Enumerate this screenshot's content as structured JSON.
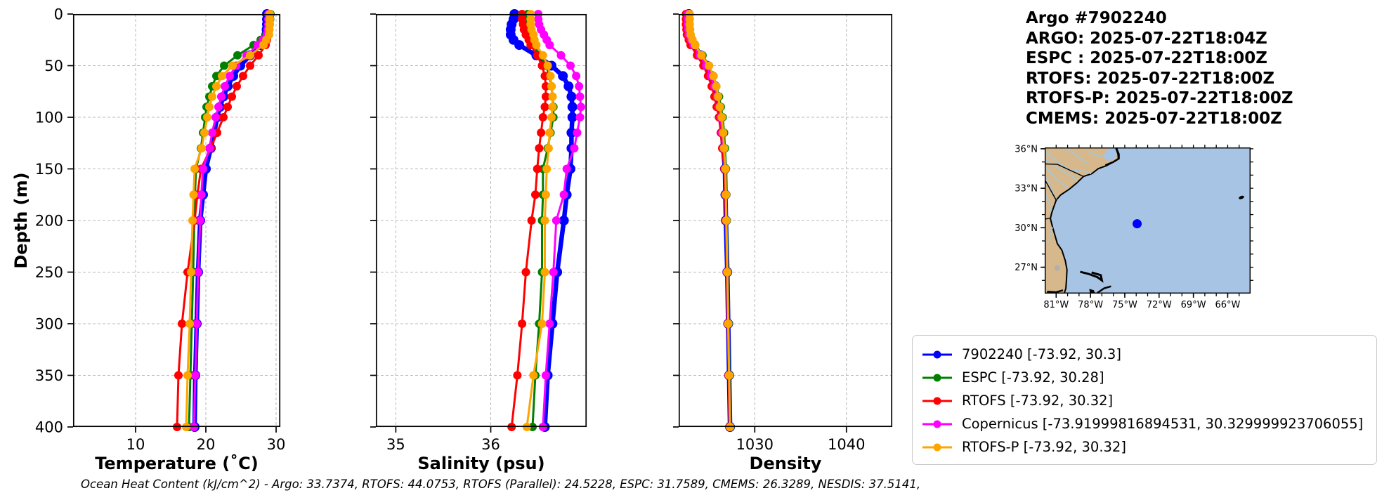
{
  "title_block": {
    "lines": [
      "Argo #7902240",
      "ARGO: 2025-07-22T18:04Z",
      "ESPC : 2025-07-22T18:00Z",
      "RTOFS: 2025-07-22T18:00Z",
      "RTOFS-P: 2025-07-22T18:00Z",
      "CMEMS: 2025-07-22T18:00Z"
    ]
  },
  "footer": "Ocean Heat Content (kJ/cm^2) - Argo: 33.7374,  RTOFS: 44.0753,  RTOFS (Parallel): 24.5228,  ESPC: 31.7589,  CMEMS: 26.3289,  NESDIS: 37.5141,",
  "axes": {
    "ylabel": "Depth (m)",
    "depth_ticks": [
      0,
      50,
      100,
      150,
      200,
      250,
      300,
      350,
      400
    ],
    "depth_range": [
      0,
      400
    ],
    "grid_color": "#b8b8b8",
    "spine_color": "#000000"
  },
  "colors": {
    "argo": "#0000ff",
    "espc": "#008000",
    "rtofs": "#ff0000",
    "copernicus": "#ff00ff",
    "rtofs_p": "#ffa500",
    "map_ocean": "#a8c4e4",
    "map_land": "#d6b88c",
    "map_river": "#9ecae1",
    "map_coast": "#000000",
    "map_lake": "#b0b0b0",
    "map_marker": "#0000ff"
  },
  "legend": {
    "entries": [
      {
        "label": "7902240 [-73.92, 30.3]",
        "color": "#0000ff"
      },
      {
        "label": "ESPC [-73.92, 30.28]",
        "color": "#008000"
      },
      {
        "label": "RTOFS [-73.92, 30.32]",
        "color": "#ff0000"
      },
      {
        "label": "Copernicus [-73.91999816894531, 30.329999923706055]",
        "color": "#ff00ff"
      },
      {
        "label": "RTOFS-P [-73.92, 30.32]",
        "color": "#ffa500"
      }
    ]
  },
  "map": {
    "lon_tick_labels": [
      "81°W",
      "78°W",
      "75°W",
      "72°W",
      "69°W",
      "66°W"
    ],
    "lon_ticks": [
      -81,
      -78,
      -75,
      -72,
      -69,
      -66
    ],
    "lat_tick_labels": [
      "36°N",
      "33°N",
      "30°N",
      "27°N"
    ],
    "lat_ticks": [
      36,
      33,
      30,
      27
    ],
    "lon_range": [
      -82,
      -64
    ],
    "lat_range": [
      25.0,
      36.1
    ],
    "marker": {
      "lon": -73.92,
      "lat": 30.3
    }
  },
  "profile_depths": [
    0,
    5,
    10,
    15,
    20,
    25,
    30,
    40,
    50,
    60,
    70,
    80,
    90,
    100,
    115,
    130,
    150,
    175,
    200,
    250,
    300,
    350,
    400
  ],
  "chart_data": [
    {
      "type": "line",
      "id": "temp",
      "xlabel": "Temperature (˚C)",
      "xlim": [
        1.1,
        30.6
      ],
      "xticks": [
        10,
        20,
        30
      ],
      "xtick_labels": [
        "10",
        "20",
        "30"
      ],
      "show_depth_labels": true,
      "series": [
        {
          "name": "7902240",
          "color": "#0000ff",
          "lw": 6.5,
          "r": 7,
          "values": [
            28.7,
            28.7,
            28.7,
            28.65,
            28.6,
            28.3,
            27.8,
            26.3,
            24.9,
            23.9,
            23.1,
            22.5,
            22.0,
            21.6,
            21.2,
            20.7,
            20.0,
            19.6,
            19.2,
            18.9,
            18.7,
            18.5,
            18.4
          ]
        },
        {
          "name": "ESPC",
          "color": "#008000",
          "lw": 3,
          "r": 6,
          "values": [
            29.2,
            29.15,
            29.1,
            28.9,
            28.6,
            27.8,
            26.8,
            24.5,
            22.6,
            21.5,
            20.9,
            20.5,
            20.1,
            19.9,
            19.6,
            19.3,
            18.6,
            18.45,
            18.35,
            18.2,
            18.0,
            17.8,
            17.6
          ]
        },
        {
          "name": "RTOFS",
          "color": "#ff0000",
          "lw": 3,
          "r": 6,
          "values": [
            29.0,
            29.0,
            29.0,
            28.95,
            28.9,
            28.7,
            28.5,
            27.5,
            26.3,
            25.3,
            24.4,
            23.7,
            23.1,
            22.5,
            21.6,
            20.7,
            19.3,
            18.8,
            18.4,
            17.4,
            16.6,
            16.1,
            15.9
          ]
        },
        {
          "name": "Copernicus",
          "color": "#ff00ff",
          "lw": 3,
          "r": 6,
          "values": [
            28.9,
            28.9,
            28.9,
            28.8,
            28.7,
            28.1,
            27.4,
            25.8,
            24.3,
            23.4,
            22.7,
            22.2,
            21.8,
            21.4,
            20.9,
            20.5,
            19.6,
            19.35,
            19.2,
            18.9,
            18.7,
            18.5,
            18.3
          ]
        },
        {
          "name": "RTOFS-P",
          "color": "#ffa500",
          "lw": 3,
          "r": 6,
          "values": [
            29.1,
            29.1,
            29.1,
            29.05,
            29.0,
            28.6,
            28.2,
            26.3,
            23.8,
            22.3,
            21.5,
            20.9,
            20.5,
            20.2,
            19.8,
            19.4,
            18.4,
            18.25,
            18.1,
            17.9,
            17.7,
            17.4,
            17.2
          ]
        }
      ]
    },
    {
      "type": "line",
      "id": "sal",
      "xlabel": "Salinity (psu)",
      "xlim": [
        34.79,
        37.01
      ],
      "xticks": [
        35,
        36
      ],
      "xtick_labels": [
        "35",
        "36"
      ],
      "show_depth_labels": false,
      "series": [
        {
          "name": "7902240",
          "color": "#0000ff",
          "lw": 6.5,
          "r": 7,
          "values": [
            36.25,
            36.24,
            36.22,
            36.21,
            36.21,
            36.24,
            36.3,
            36.48,
            36.64,
            36.76,
            36.82,
            36.85,
            36.86,
            36.86,
            36.85,
            36.85,
            36.84,
            36.8,
            36.77,
            36.7,
            36.65,
            36.6,
            36.57
          ]
        },
        {
          "name": "ESPC",
          "color": "#008000",
          "lw": 3,
          "r": 6,
          "values": [
            36.39,
            36.39,
            36.39,
            36.4,
            36.41,
            36.43,
            36.45,
            36.52,
            36.58,
            36.62,
            36.64,
            36.65,
            36.66,
            36.66,
            36.63,
            36.6,
            36.55,
            36.55,
            36.54,
            36.54,
            36.51,
            36.47,
            36.44
          ]
        },
        {
          "name": "RTOFS",
          "color": "#ff0000",
          "lw": 3,
          "r": 6,
          "values": [
            36.33,
            36.33,
            36.34,
            36.35,
            36.37,
            36.4,
            36.42,
            36.49,
            36.54,
            36.57,
            36.58,
            36.58,
            36.57,
            36.55,
            36.53,
            36.51,
            36.49,
            36.47,
            36.43,
            36.37,
            36.33,
            36.28,
            36.22
          ]
        },
        {
          "name": "Copernicus",
          "color": "#ff00ff",
          "lw": 3,
          "r": 6,
          "values": [
            36.5,
            36.5,
            36.51,
            36.53,
            36.56,
            36.59,
            36.62,
            36.74,
            36.84,
            36.9,
            36.93,
            36.94,
            36.95,
            36.94,
            36.91,
            36.88,
            36.8,
            36.77,
            36.69,
            36.66,
            36.62,
            36.58,
            36.55
          ]
        },
        {
          "name": "RTOFS-P",
          "color": "#ffa500",
          "lw": 3,
          "r": 6,
          "values": [
            36.42,
            36.42,
            36.42,
            36.43,
            36.45,
            36.46,
            36.48,
            36.55,
            36.6,
            36.63,
            36.64,
            36.65,
            36.65,
            36.64,
            36.62,
            36.61,
            36.59,
            36.58,
            36.57,
            36.57,
            36.54,
            36.45,
            36.38
          ]
        }
      ]
    },
    {
      "type": "line",
      "id": "dens",
      "xlabel": "Density",
      "xlim": [
        1021.7,
        1045.0
      ],
      "xticks": [
        1030,
        1040
      ],
      "xtick_labels": [
        "1030",
        "1040"
      ],
      "show_depth_labels": false,
      "series": [
        {
          "name": "7902240",
          "color": "#0000ff",
          "lw": 6.5,
          "r": 7,
          "values": [
            1022.8,
            1022.8,
            1022.8,
            1022.85,
            1022.9,
            1023.1,
            1023.4,
            1024.1,
            1024.8,
            1025.3,
            1025.7,
            1025.9,
            1026.1,
            1026.3,
            1026.45,
            1026.55,
            1026.75,
            1026.8,
            1026.85,
            1027.0,
            1027.1,
            1027.2,
            1027.3
          ]
        },
        {
          "name": "ESPC",
          "color": "#008000",
          "lw": 3,
          "r": 6,
          "values": [
            1022.6,
            1022.6,
            1022.65,
            1022.7,
            1022.8,
            1023.1,
            1023.5,
            1024.3,
            1025.0,
            1025.5,
            1025.8,
            1026.1,
            1026.3,
            1026.5,
            1026.65,
            1026.75,
            1026.85,
            1026.9,
            1026.95,
            1027.05,
            1027.15,
            1027.25,
            1027.35
          ]
        },
        {
          "name": "RTOFS",
          "color": "#ff0000",
          "lw": 3,
          "r": 6,
          "values": [
            1022.5,
            1022.5,
            1022.5,
            1022.55,
            1022.6,
            1022.8,
            1023.0,
            1023.7,
            1024.4,
            1024.9,
            1025.3,
            1025.6,
            1025.85,
            1026.1,
            1026.3,
            1026.45,
            1026.7,
            1026.75,
            1026.85,
            1026.95,
            1027.05,
            1027.15,
            1027.25
          ]
        },
        {
          "name": "Copernicus",
          "color": "#ff00ff",
          "lw": 3,
          "r": 6,
          "values": [
            1022.7,
            1022.7,
            1022.7,
            1022.75,
            1022.8,
            1023.05,
            1023.3,
            1024.0,
            1024.7,
            1025.2,
            1025.6,
            1025.9,
            1026.1,
            1026.3,
            1026.45,
            1026.6,
            1026.8,
            1026.85,
            1026.9,
            1027.0,
            1027.1,
            1027.2,
            1027.3
          ]
        },
        {
          "name": "RTOFS-P",
          "color": "#ffa500",
          "lw": 3,
          "r": 6,
          "values": [
            1022.9,
            1022.9,
            1022.9,
            1022.95,
            1023.0,
            1023.2,
            1023.5,
            1024.2,
            1025.0,
            1025.5,
            1025.8,
            1026.0,
            1026.2,
            1026.4,
            1026.55,
            1026.65,
            1026.8,
            1026.85,
            1026.9,
            1027.0,
            1027.1,
            1027.2,
            1027.3
          ]
        }
      ]
    }
  ]
}
